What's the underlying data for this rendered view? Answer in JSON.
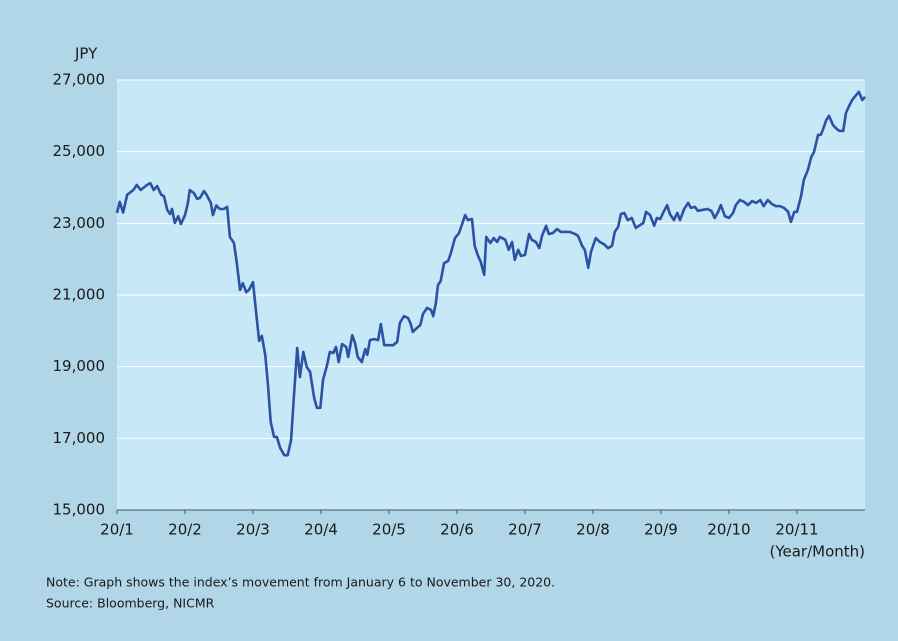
{
  "chart_data": {
    "type": "line",
    "y_label": "JPY",
    "x_label": "(Year/Month)",
    "notes": [
      "Note: Graph shows the index’s movement from January 6 to November 30, 2020.",
      "Source: Bloomberg, NICMR"
    ],
    "color": "#2b52a3",
    "grid": true,
    "xlim": [
      1,
      12
    ],
    "xticks": [
      {
        "value": 1,
        "label": "20/1"
      },
      {
        "value": 2,
        "label": "20/2"
      },
      {
        "value": 3,
        "label": "20/3"
      },
      {
        "value": 4,
        "label": "20/4"
      },
      {
        "value": 5,
        "label": "20/5"
      },
      {
        "value": 6,
        "label": "20/6"
      },
      {
        "value": 7,
        "label": "20/7"
      },
      {
        "value": 8,
        "label": "20/8"
      },
      {
        "value": 9,
        "label": "20/9"
      },
      {
        "value": 10,
        "label": "20/10"
      },
      {
        "value": 11,
        "label": "20/11"
      }
    ],
    "ylim": [
      15000,
      27000
    ],
    "yticks": [
      {
        "value": 15000,
        "label": "15,000"
      },
      {
        "value": 17000,
        "label": "17,000"
      },
      {
        "value": 19000,
        "label": "19,000"
      },
      {
        "value": 21000,
        "label": "21,000"
      },
      {
        "value": 23000,
        "label": "23,000"
      },
      {
        "value": 25000,
        "label": "25,000"
      },
      {
        "value": 27000,
        "label": "27,000"
      }
    ],
    "x": [
      1.0,
      1.04,
      1.09,
      1.15,
      1.24,
      1.29,
      1.35,
      1.44,
      1.49,
      1.54,
      1.59,
      1.65,
      1.69,
      1.74,
      1.78,
      1.81,
      1.85,
      1.9,
      1.94,
      2.0,
      2.04,
      2.07,
      2.13,
      2.18,
      2.22,
      2.28,
      2.32,
      2.38,
      2.41,
      2.46,
      2.51,
      2.57,
      2.62,
      2.66,
      2.72,
      2.76,
      2.81,
      2.85,
      2.9,
      2.94,
      3.0,
      3.03,
      3.09,
      3.13,
      3.18,
      3.22,
      3.26,
      3.31,
      3.35,
      3.4,
      3.46,
      3.51,
      3.56,
      3.6,
      3.65,
      3.69,
      3.74,
      3.79,
      3.84,
      3.9,
      3.94,
      3.99,
      4.03,
      4.09,
      4.13,
      4.18,
      4.22,
      4.26,
      4.31,
      4.37,
      4.4,
      4.46,
      4.5,
      4.54,
      4.6,
      4.65,
      4.68,
      4.72,
      4.78,
      4.84,
      4.88,
      4.93,
      4.99,
      5.06,
      5.12,
      5.16,
      5.22,
      5.28,
      5.32,
      5.35,
      5.41,
      5.46,
      5.5,
      5.56,
      5.62,
      5.65,
      5.69,
      5.72,
      5.76,
      5.81,
      5.87,
      5.91,
      5.97,
      6.03,
      6.07,
      6.12,
      6.16,
      6.22,
      6.26,
      6.31,
      6.35,
      6.4,
      6.43,
      6.49,
      6.54,
      6.59,
      6.63,
      6.71,
      6.76,
      6.81,
      6.85,
      6.9,
      6.94,
      7.0,
      7.06,
      7.1,
      7.16,
      7.21,
      7.25,
      7.31,
      7.35,
      7.41,
      7.47,
      7.53,
      7.6,
      7.66,
      7.74,
      7.78,
      7.84,
      7.88,
      7.93,
      7.97,
      8.04,
      8.1,
      8.16,
      8.22,
      8.28,
      8.32,
      8.37,
      8.41,
      8.46,
      8.51,
      8.57,
      8.63,
      8.69,
      8.74,
      8.78,
      8.84,
      8.9,
      8.94,
      8.99,
      9.03,
      9.09,
      9.13,
      9.19,
      9.24,
      9.28,
      9.34,
      9.4,
      9.44,
      9.5,
      9.54,
      9.6,
      9.68,
      9.74,
      9.79,
      9.84,
      9.88,
      9.94,
      10.0,
      10.06,
      10.1,
      10.16,
      10.22,
      10.28,
      10.34,
      10.4,
      10.46,
      10.51,
      10.57,
      10.63,
      10.69,
      10.75,
      10.81,
      10.87,
      10.91,
      10.96,
      11.0,
      11.06,
      11.1,
      11.16,
      11.21,
      11.25,
      11.31,
      11.35,
      11.38,
      11.43,
      11.47,
      11.53,
      11.57,
      11.62,
      11.68,
      11.72,
      11.76,
      11.81,
      11.87,
      11.91,
      11.96,
      12.0
    ],
    "values": [
      23290,
      23600,
      23300,
      23800,
      23930,
      24070,
      23930,
      24070,
      24120,
      23930,
      24040,
      23800,
      23760,
      23370,
      23260,
      23400,
      23010,
      23200,
      22980,
      23230,
      23540,
      23930,
      23850,
      23680,
      23710,
      23900,
      23790,
      23570,
      23230,
      23500,
      23400,
      23400,
      23460,
      22620,
      22450,
      21920,
      21140,
      21330,
      21080,
      21140,
      21360,
      20800,
      19720,
      19860,
      19330,
      18490,
      17460,
      17040,
      17040,
      16730,
      16530,
      16530,
      16950,
      18120,
      19520,
      18710,
      19410,
      18990,
      18850,
      18120,
      17850,
      17850,
      18630,
      19050,
      19410,
      19380,
      19550,
      19130,
      19630,
      19550,
      19270,
      19880,
      19660,
      19270,
      19130,
      19490,
      19330,
      19740,
      19770,
      19740,
      20190,
      19600,
      19600,
      19600,
      19690,
      20220,
      20410,
      20360,
      20190,
      19970,
      20080,
      20160,
      20470,
      20640,
      20580,
      20410,
      20780,
      21280,
      21390,
      21890,
      21950,
      22170,
      22590,
      22730,
      22950,
      23230,
      23090,
      23120,
      22370,
      22090,
      21920,
      21560,
      22620,
      22450,
      22590,
      22480,
      22620,
      22540,
      22260,
      22480,
      21980,
      22260,
      22090,
      22120,
      22700,
      22540,
      22480,
      22310,
      22650,
      22930,
      22700,
      22730,
      22840,
      22760,
      22760,
      22760,
      22700,
      22650,
      22370,
      22260,
      21760,
      22200,
      22590,
      22480,
      22420,
      22310,
      22370,
      22760,
      22900,
      23260,
      23290,
      23090,
      23150,
      22870,
      22950,
      23010,
      23320,
      23230,
      22930,
      23150,
      23120,
      23290,
      23510,
      23260,
      23090,
      23290,
      23090,
      23400,
      23570,
      23430,
      23460,
      23350,
      23370,
      23400,
      23350,
      23150,
      23320,
      23510,
      23200,
      23150,
      23290,
      23510,
      23650,
      23600,
      23510,
      23620,
      23570,
      23650,
      23480,
      23650,
      23540,
      23480,
      23480,
      23430,
      23320,
      23040,
      23320,
      23320,
      23760,
      24210,
      24490,
      24850,
      24990,
      25470,
      25470,
      25610,
      25880,
      26000,
      25740,
      25660,
      25580,
      25580,
      26080,
      26250,
      26440,
      26580,
      26670,
      26440,
      26530
    ]
  }
}
